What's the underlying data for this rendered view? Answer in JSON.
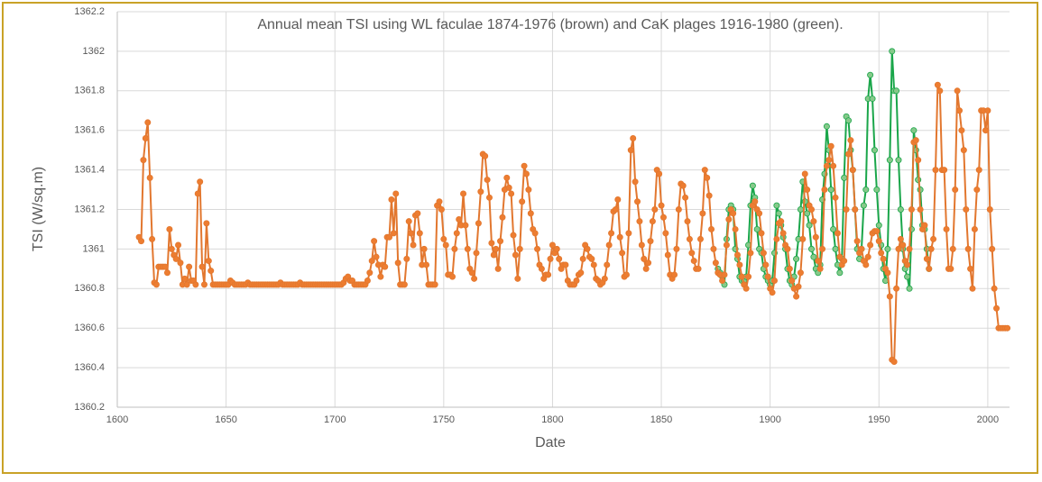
{
  "chart_data": {
    "type": "line",
    "title": "Annual mean TSI using WL faculae 1874-1976 (brown) and CaK plages 1916-1980 (green).",
    "xlabel": "Date",
    "ylabel": "TSI (W/sq.m)",
    "xlim": [
      1600,
      2010
    ],
    "xticks": [
      1600,
      1650,
      1700,
      1750,
      1800,
      1850,
      1900,
      1950,
      2000
    ],
    "ylim": [
      1360.2,
      1362.2
    ],
    "yticks": [
      1360.2,
      1360.4,
      1360.6,
      1360.8,
      1361,
      1361.2,
      1361.4,
      1361.6,
      1361.8,
      1362,
      1362.2
    ],
    "grid": true,
    "series": [
      {
        "color": "#1aa64a",
        "marker_fill": "#86c98a",
        "x": [
          1876,
          1877,
          1878,
          1879,
          1880,
          1881,
          1882,
          1883,
          1884,
          1885,
          1886,
          1887,
          1888,
          1889,
          1890,
          1891,
          1892,
          1893,
          1894,
          1895,
          1896,
          1897,
          1898,
          1899,
          1900,
          1901,
          1902,
          1903,
          1904,
          1905,
          1906,
          1907,
          1908,
          1909,
          1910,
          1911,
          1912,
          1913,
          1914,
          1915,
          1916,
          1917,
          1918,
          1919,
          1920,
          1921,
          1922,
          1923,
          1924,
          1925,
          1926,
          1927,
          1928,
          1929,
          1930,
          1931,
          1932,
          1933,
          1934,
          1935,
          1936,
          1937,
          1938,
          1939,
          1940,
          1941,
          1942,
          1943,
          1944,
          1945,
          1946,
          1947,
          1948,
          1949,
          1950,
          1951,
          1952,
          1953,
          1954,
          1955,
          1956,
          1957,
          1958,
          1959,
          1960,
          1961,
          1962,
          1963,
          1964,
          1965,
          1966,
          1967,
          1968,
          1969,
          1970,
          1971,
          1972,
          1973
        ],
        "values": [
          1360.9,
          1360.88,
          1360.86,
          1360.82,
          1361.05,
          1361.2,
          1361.22,
          1361.2,
          1361.0,
          1360.95,
          1360.86,
          1360.84,
          1360.84,
          1360.86,
          1361.02,
          1361.22,
          1361.32,
          1361.26,
          1361.1,
          1361.0,
          1360.98,
          1360.9,
          1360.86,
          1360.84,
          1360.82,
          1360.84,
          1360.98,
          1361.22,
          1361.18,
          1361.12,
          1361.06,
          1361.0,
          1360.9,
          1360.84,
          1360.82,
          1360.86,
          1360.95,
          1361.05,
          1361.2,
          1361.34,
          1361.24,
          1361.18,
          1361.12,
          1361.0,
          1360.96,
          1360.9,
          1360.88,
          1360.92,
          1361.25,
          1361.38,
          1361.62,
          1361.5,
          1361.3,
          1361.1,
          1361.0,
          1360.92,
          1360.88,
          1360.95,
          1361.36,
          1361.67,
          1361.65,
          1361.5,
          1361.4,
          1361.2,
          1361.0,
          1360.95,
          1361.0,
          1361.22,
          1361.3,
          1361.76,
          1361.88,
          1361.76,
          1361.5,
          1361.3,
          1361.12,
          1361.02,
          1360.9,
          1360.84,
          1361.0,
          1361.45,
          1362.0,
          1361.8,
          1361.8,
          1361.45,
          1361.2,
          1361.0,
          1360.9,
          1360.86,
          1360.8,
          1361.1,
          1361.6,
          1361.5,
          1361.35,
          1361.3,
          1361.12,
          1361.1,
          1361.0,
          1360.9
        ]
      },
      {
        "color": "#e2772f",
        "marker_fill": "#ed7d31",
        "x": [
          1610,
          1611,
          1612,
          1613,
          1614,
          1615,
          1616,
          1617,
          1618,
          1619,
          1620,
          1621,
          1622,
          1623,
          1624,
          1625,
          1626,
          1627,
          1628,
          1629,
          1630,
          1631,
          1632,
          1633,
          1634,
          1635,
          1636,
          1637,
          1638,
          1639,
          1640,
          1641,
          1642,
          1643,
          1644,
          1645,
          1646,
          1647,
          1648,
          1649,
          1650,
          1651,
          1652,
          1653,
          1654,
          1655,
          1656,
          1657,
          1658,
          1659,
          1660,
          1661,
          1662,
          1663,
          1664,
          1665,
          1666,
          1667,
          1668,
          1669,
          1670,
          1671,
          1672,
          1673,
          1674,
          1675,
          1676,
          1677,
          1678,
          1679,
          1680,
          1681,
          1682,
          1683,
          1684,
          1685,
          1686,
          1687,
          1688,
          1689,
          1690,
          1691,
          1692,
          1693,
          1694,
          1695,
          1696,
          1697,
          1698,
          1699,
          1700,
          1701,
          1702,
          1703,
          1704,
          1705,
          1706,
          1707,
          1708,
          1709,
          1710,
          1711,
          1712,
          1713,
          1714,
          1715,
          1716,
          1717,
          1718,
          1719,
          1720,
          1721,
          1722,
          1723,
          1724,
          1725,
          1726,
          1727,
          1728,
          1729,
          1730,
          1731,
          1732,
          1733,
          1734,
          1735,
          1736,
          1737,
          1738,
          1739,
          1740,
          1741,
          1742,
          1743,
          1744,
          1745,
          1746,
          1747,
          1748,
          1749,
          1750,
          1751,
          1752,
          1753,
          1754,
          1755,
          1756,
          1757,
          1758,
          1759,
          1760,
          1761,
          1762,
          1763,
          1764,
          1765,
          1766,
          1767,
          1768,
          1769,
          1770,
          1771,
          1772,
          1773,
          1774,
          1775,
          1776,
          1777,
          1778,
          1779,
          1780,
          1781,
          1782,
          1783,
          1784,
          1785,
          1786,
          1787,
          1788,
          1789,
          1790,
          1791,
          1792,
          1793,
          1794,
          1795,
          1796,
          1797,
          1798,
          1799,
          1800,
          1801,
          1802,
          1803,
          1804,
          1805,
          1806,
          1807,
          1808,
          1809,
          1810,
          1811,
          1812,
          1813,
          1814,
          1815,
          1816,
          1817,
          1818,
          1819,
          1820,
          1821,
          1822,
          1823,
          1824,
          1825,
          1826,
          1827,
          1828,
          1829,
          1830,
          1831,
          1832,
          1833,
          1834,
          1835,
          1836,
          1837,
          1838,
          1839,
          1840,
          1841,
          1842,
          1843,
          1844,
          1845,
          1846,
          1847,
          1848,
          1849,
          1850,
          1851,
          1852,
          1853,
          1854,
          1855,
          1856,
          1857,
          1858,
          1859,
          1860,
          1861,
          1862,
          1863,
          1864,
          1865,
          1866,
          1867,
          1868,
          1869,
          1870,
          1871,
          1872,
          1873,
          1874,
          1875,
          1876,
          1877,
          1878,
          1879,
          1880,
          1881,
          1882,
          1883,
          1884,
          1885,
          1886,
          1887,
          1888,
          1889,
          1890,
          1891,
          1892,
          1893,
          1894,
          1895,
          1896,
          1897,
          1898,
          1899,
          1900,
          1901,
          1902,
          1903,
          1904,
          1905,
          1906,
          1907,
          1908,
          1909,
          1910,
          1911,
          1912,
          1913,
          1914,
          1915,
          1916,
          1917,
          1918,
          1919,
          1920,
          1921,
          1922,
          1923,
          1924,
          1925,
          1926,
          1927,
          1928,
          1929,
          1930,
          1931,
          1932,
          1933,
          1934,
          1935,
          1936,
          1937,
          1938,
          1939,
          1940,
          1941,
          1942,
          1943,
          1944,
          1945,
          1946,
          1947,
          1948,
          1949,
          1950,
          1951,
          1952,
          1953,
          1954,
          1955,
          1956,
          1957,
          1958,
          1959,
          1960,
          1961,
          1962,
          1963,
          1964,
          1965,
          1966,
          1967,
          1968,
          1969,
          1970,
          1971,
          1972,
          1973,
          1974,
          1975,
          1976,
          1977,
          1978,
          1979,
          1980,
          1981,
          1982,
          1983,
          1984,
          1985,
          1986,
          1987,
          1988,
          1989,
          1990,
          1991,
          1992,
          1993,
          1994,
          1995,
          1996,
          1997,
          1998,
          1999,
          2000,
          2001,
          2002,
          2003,
          2004,
          2005,
          2006,
          2007,
          2008,
          2009
        ],
        "values": [
          1361.06,
          1361.04,
          1361.45,
          1361.56,
          1361.64,
          1361.36,
          1361.05,
          1360.83,
          1360.82,
          1360.91,
          1360.91,
          1360.91,
          1360.91,
          1360.88,
          1361.1,
          1361.0,
          1360.97,
          1360.95,
          1361.02,
          1360.93,
          1360.82,
          1360.85,
          1360.82,
          1360.91,
          1360.84,
          1360.84,
          1360.82,
          1361.28,
          1361.34,
          1360.91,
          1360.82,
          1361.13,
          1360.94,
          1360.89,
          1360.82,
          1360.82,
          1360.82,
          1360.82,
          1360.82,
          1360.82,
          1360.82,
          1360.82,
          1360.84,
          1360.83,
          1360.82,
          1360.82,
          1360.82,
          1360.82,
          1360.82,
          1360.82,
          1360.83,
          1360.82,
          1360.82,
          1360.82,
          1360.82,
          1360.82,
          1360.82,
          1360.82,
          1360.82,
          1360.82,
          1360.82,
          1360.82,
          1360.82,
          1360.82,
          1360.82,
          1360.83,
          1360.82,
          1360.82,
          1360.82,
          1360.82,
          1360.82,
          1360.82,
          1360.82,
          1360.82,
          1360.83,
          1360.82,
          1360.82,
          1360.82,
          1360.82,
          1360.82,
          1360.82,
          1360.82,
          1360.82,
          1360.82,
          1360.82,
          1360.82,
          1360.82,
          1360.82,
          1360.82,
          1360.82,
          1360.82,
          1360.82,
          1360.82,
          1360.82,
          1360.83,
          1360.85,
          1360.86,
          1360.84,
          1360.84,
          1360.82,
          1360.82,
          1360.82,
          1360.82,
          1360.82,
          1360.82,
          1360.84,
          1360.88,
          1360.94,
          1361.04,
          1360.96,
          1360.92,
          1360.86,
          1360.92,
          1360.91,
          1361.06,
          1361.06,
          1361.25,
          1361.08,
          1361.28,
          1360.93,
          1360.82,
          1360.82,
          1360.82,
          1360.95,
          1361.14,
          1361.08,
          1361.02,
          1361.17,
          1361.18,
          1361.08,
          1360.92,
          1361.0,
          1360.92,
          1360.82,
          1360.82,
          1360.82,
          1360.82,
          1361.22,
          1361.24,
          1361.2,
          1361.05,
          1361.02,
          1360.87,
          1360.87,
          1360.86,
          1361.0,
          1361.08,
          1361.15,
          1361.12,
          1361.28,
          1361.12,
          1361.0,
          1360.9,
          1360.88,
          1360.85,
          1360.98,
          1361.13,
          1361.29,
          1361.48,
          1361.47,
          1361.35,
          1361.26,
          1361.03,
          1360.97,
          1361.0,
          1360.9,
          1361.04,
          1361.16,
          1361.3,
          1361.36,
          1361.31,
          1361.28,
          1361.07,
          1360.97,
          1360.85,
          1361.0,
          1361.24,
          1361.42,
          1361.38,
          1361.3,
          1361.18,
          1361.1,
          1361.08,
          1361.0,
          1360.92,
          1360.9,
          1360.85,
          1360.87,
          1360.87,
          1360.95,
          1361.02,
          1360.98,
          1361.0,
          1360.95,
          1360.9,
          1360.92,
          1360.92,
          1360.84,
          1360.82,
          1360.82,
          1360.82,
          1360.84,
          1360.87,
          1360.88,
          1360.95,
          1361.02,
          1361.0,
          1360.96,
          1360.95,
          1360.92,
          1360.85,
          1360.84,
          1360.82,
          1360.83,
          1360.85,
          1360.92,
          1361.02,
          1361.08,
          1361.19,
          1361.2,
          1361.25,
          1361.06,
          1360.98,
          1360.86,
          1360.87,
          1361.08,
          1361.5,
          1361.56,
          1361.34,
          1361.24,
          1361.14,
          1361.02,
          1360.95,
          1360.9,
          1360.93,
          1361.04,
          1361.14,
          1361.2,
          1361.4,
          1361.38,
          1361.22,
          1361.16,
          1361.08,
          1360.97,
          1360.87,
          1360.85,
          1360.87,
          1361.0,
          1361.2,
          1361.33,
          1361.32,
          1361.26,
          1361.14,
          1361.05,
          1360.98,
          1360.94,
          1360.9,
          1360.9,
          1361.05,
          1361.18,
          1361.4,
          1361.36,
          1361.27,
          1361.1,
          1361.0,
          1360.93,
          1360.88,
          1360.87,
          1360.84,
          1360.87,
          1361.02,
          1361.15,
          1361.2,
          1361.18,
          1361.1,
          1360.97,
          1360.92,
          1360.86,
          1360.82,
          1360.8,
          1360.86,
          1360.98,
          1361.22,
          1361.24,
          1361.2,
          1361.18,
          1361.08,
          1360.98,
          1360.92,
          1360.86,
          1360.8,
          1360.78,
          1360.84,
          1361.05,
          1361.13,
          1361.14,
          1361.08,
          1361.02,
          1361.0,
          1360.9,
          1360.84,
          1360.8,
          1360.76,
          1360.81,
          1360.88,
          1361.05,
          1361.38,
          1361.3,
          1361.22,
          1361.2,
          1361.14,
          1361.06,
          1360.94,
          1360.9,
          1361.0,
          1361.3,
          1361.42,
          1361.45,
          1361.52,
          1361.42,
          1361.26,
          1361.08,
          1360.96,
          1360.92,
          1360.94,
          1361.2,
          1361.48,
          1361.55,
          1361.4,
          1361.2,
          1361.04,
          1360.98,
          1361.0,
          1360.94,
          1360.92,
          1360.96,
          1361.02,
          1361.08,
          1361.09,
          1361.09,
          1361.04,
          1360.98,
          1360.95,
          1360.9,
          1360.88,
          1360.76,
          1360.44,
          1360.43,
          1360.8,
          1361.0,
          1361.05,
          1361.02,
          1360.94,
          1360.92,
          1361.0,
          1361.2,
          1361.54,
          1361.55,
          1361.45,
          1361.2,
          1361.1,
          1361.12,
          1360.95,
          1360.9,
          1361.0,
          1361.05,
          1361.4,
          1361.83,
          1361.8,
          1361.4,
          1361.4,
          1361.1,
          1360.9,
          1360.9,
          1361.0,
          1361.3,
          1361.8,
          1361.7,
          1361.6,
          1361.5,
          1361.2,
          1361.0,
          1360.9,
          1360.8,
          1361.1,
          1361.3,
          1361.4,
          1361.7,
          1361.7,
          1361.6,
          1361.7,
          1361.2,
          1361.0,
          1360.8,
          1360.7,
          1360.6,
          1360.6,
          1360.6,
          1360.6,
          1360.6
        ]
      }
    ]
  }
}
